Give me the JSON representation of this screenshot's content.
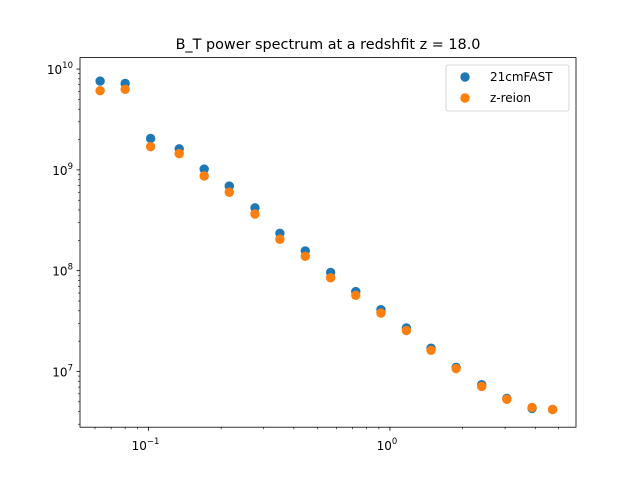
{
  "chart_data": {
    "type": "scatter",
    "title": "B_T power spectrum at a redshfit z = 18.0",
    "xlabel": "",
    "ylabel": "",
    "xscale": "log",
    "yscale": "log",
    "xlim": [
      0.052,
      5.9
    ],
    "ylim": [
      2800000.0,
      13000000000.0
    ],
    "grid": false,
    "legend_position": "top-right",
    "x_ticks": [
      {
        "value": 0.1,
        "base": "10",
        "exp": "−1"
      },
      {
        "value": 1,
        "base": "10",
        "exp": "0"
      }
    ],
    "y_ticks": [
      {
        "value": 10000000.0,
        "base": "10",
        "exp": "7"
      },
      {
        "value": 100000000.0,
        "base": "10",
        "exp": "8"
      },
      {
        "value": 1000000000.0,
        "base": "10",
        "exp": "9"
      },
      {
        "value": 10000000000.0,
        "base": "10",
        "exp": "10"
      }
    ],
    "x": [
      0.063,
      0.08,
      0.102,
      0.134,
      0.17,
      0.216,
      0.276,
      0.35,
      0.446,
      0.568,
      0.722,
      0.918,
      1.17,
      1.48,
      1.88,
      2.4,
      3.05,
      3.88,
      4.72
    ],
    "series": [
      {
        "name": "21cmFAST",
        "color": "#1f77b4",
        "values": [
          7600000000.0,
          7200000000.0,
          2050000000.0,
          1620000000.0,
          1020000000.0,
          690000000.0,
          420000000.0,
          235000000.0,
          157000000.0,
          96000000.0,
          62000000.0,
          41000000.0,
          27000000.0,
          17000000.0,
          11000000.0,
          7400000.0,
          5400000.0,
          4300000.0,
          4200000.0
        ]
      },
      {
        "name": "z-reion",
        "color": "#ff7f0e",
        "values": [
          6100000000.0,
          6300000000.0,
          1700000000.0,
          1450000000.0,
          870000000.0,
          600000000.0,
          365000000.0,
          205000000.0,
          139000000.0,
          85000000.0,
          57000000.0,
          38000000.0,
          25500000.0,
          16200000.0,
          10700000.0,
          7100000.0,
          5300000.0,
          4400000.0,
          4200000.0
        ]
      }
    ]
  }
}
